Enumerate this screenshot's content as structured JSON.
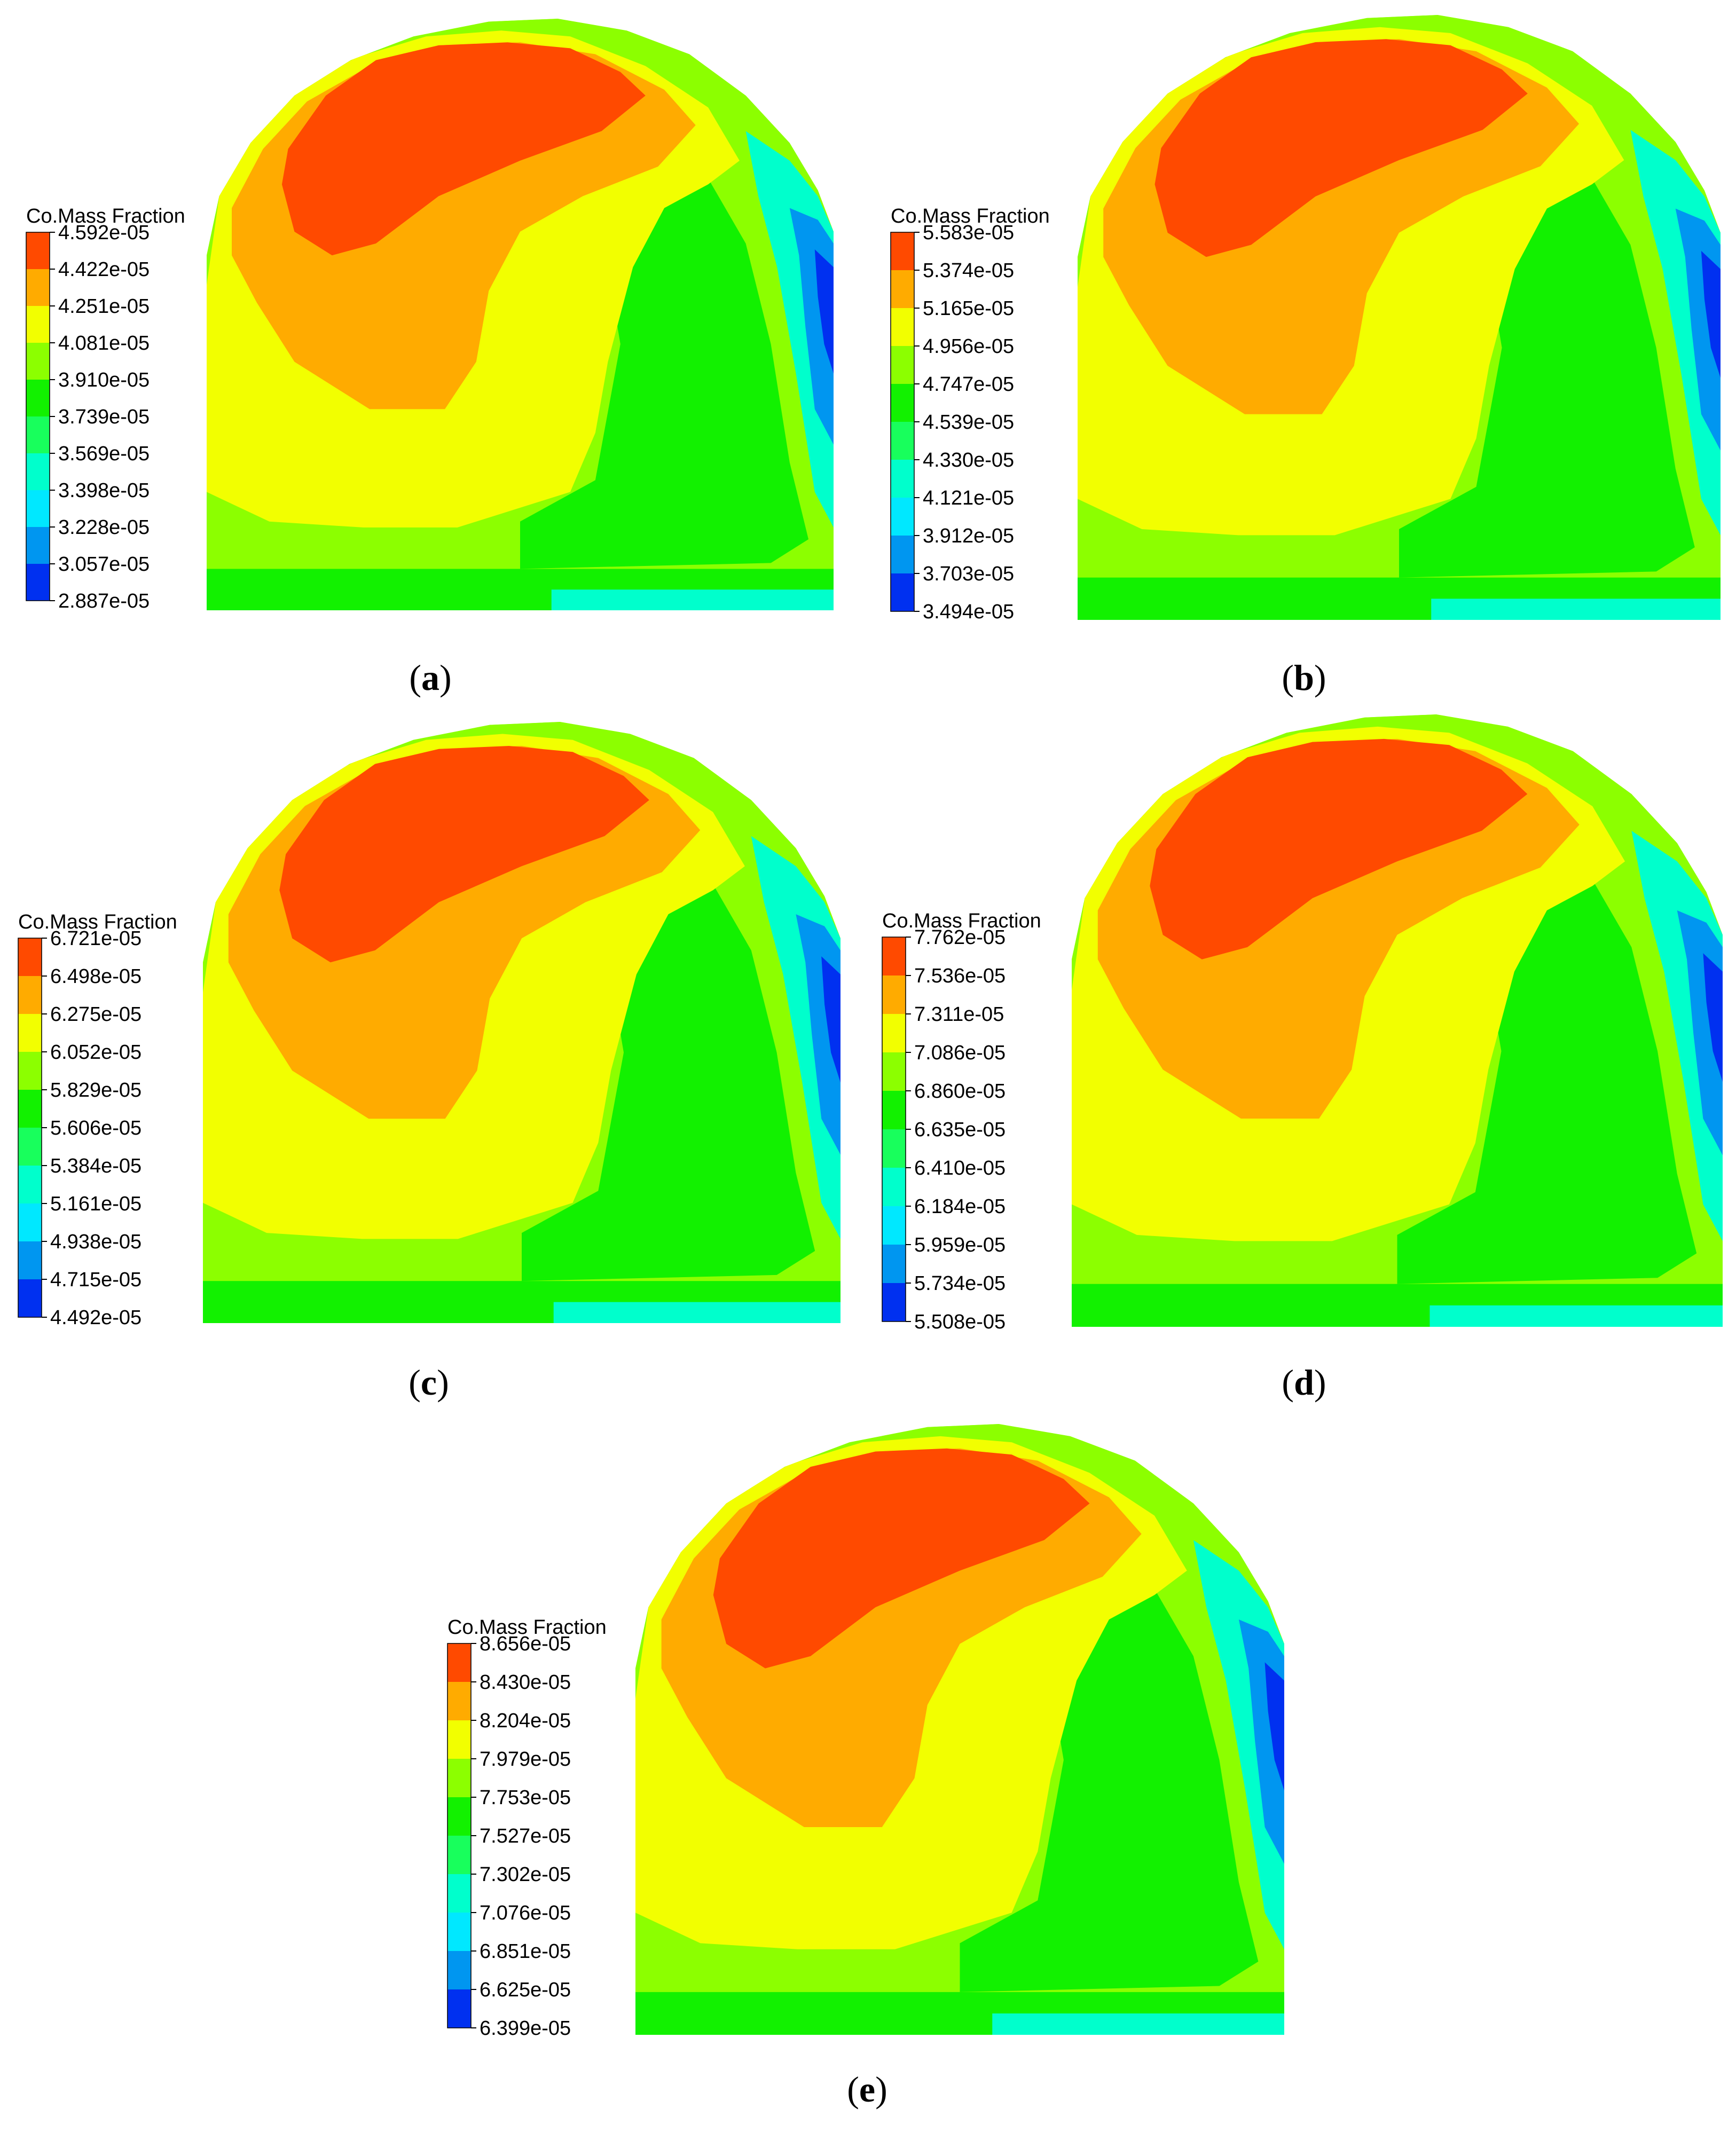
{
  "chart_data": [
    {
      "type": "contour",
      "panel": "a",
      "caption_letter": "a",
      "legend_title": "Co.Mass Fraction",
      "levels": [
        "4.592e-05",
        "4.422e-05",
        "4.251e-05",
        "4.081e-05",
        "3.910e-05",
        "3.739e-05",
        "3.569e-05",
        "3.398e-05",
        "3.228e-05",
        "3.057e-05",
        "2.887e-05"
      ]
    },
    {
      "type": "contour",
      "panel": "b",
      "caption_letter": "b",
      "legend_title": "Co.Mass Fraction",
      "levels": [
        "5.583e-05",
        "5.374e-05",
        "5.165e-05",
        "4.956e-05",
        "4.747e-05",
        "4.539e-05",
        "4.330e-05",
        "4.121e-05",
        "3.912e-05",
        "3.703e-05",
        "3.494e-05"
      ]
    },
    {
      "type": "contour",
      "panel": "c",
      "caption_letter": "c",
      "legend_title": "Co.Mass Fraction",
      "levels": [
        "6.721e-05",
        "6.498e-05",
        "6.275e-05",
        "6.052e-05",
        "5.829e-05",
        "5.606e-05",
        "5.384e-05",
        "5.161e-05",
        "4.938e-05",
        "4.715e-05",
        "4.492e-05"
      ]
    },
    {
      "type": "contour",
      "panel": "d",
      "caption_letter": "d",
      "legend_title": "Co.Mass Fraction",
      "levels": [
        "7.762e-05",
        "7.536e-05",
        "7.311e-05",
        "7.086e-05",
        "6.860e-05",
        "6.635e-05",
        "6.410e-05",
        "6.184e-05",
        "5.959e-05",
        "5.734e-05",
        "5.508e-05"
      ]
    },
    {
      "type": "contour",
      "panel": "e",
      "caption_letter": "e",
      "legend_title": "Co.Mass Fraction",
      "levels": [
        "8.656e-05",
        "8.430e-05",
        "8.204e-05",
        "7.979e-05",
        "7.753e-05",
        "7.527e-05",
        "7.302e-05",
        "7.076e-05",
        "6.851e-05",
        "6.625e-05",
        "6.399e-05"
      ]
    }
  ],
  "colormap": [
    "#ff4a00",
    "#ffab00",
    "#f2ff00",
    "#8cff00",
    "#12f100",
    "#18ff5c",
    "#00ffcc",
    "#00e8ff",
    "#0096f0",
    "#0030f0"
  ],
  "outline_color": "#000000"
}
